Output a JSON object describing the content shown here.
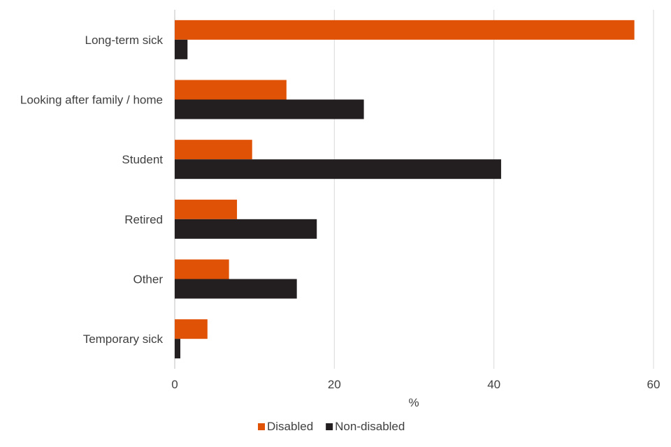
{
  "chart_data": {
    "type": "bar",
    "orientation": "horizontal",
    "categories": [
      "Long-term sick",
      "Looking after family / home",
      "Student",
      "Retired",
      "Other",
      "Temporary sick"
    ],
    "series": [
      {
        "name": "Disabled",
        "color": "#E05206",
        "values": [
          57.6,
          14.0,
          9.7,
          7.8,
          6.8,
          4.1
        ]
      },
      {
        "name": "Non-disabled",
        "color": "#231F20",
        "values": [
          1.6,
          23.7,
          40.9,
          17.8,
          15.3,
          0.7
        ]
      }
    ],
    "xlabel": "%",
    "xlim": [
      0,
      60
    ],
    "xticks": [
      0,
      20,
      40,
      60
    ],
    "grid": "vertical",
    "legend": "bottom"
  }
}
